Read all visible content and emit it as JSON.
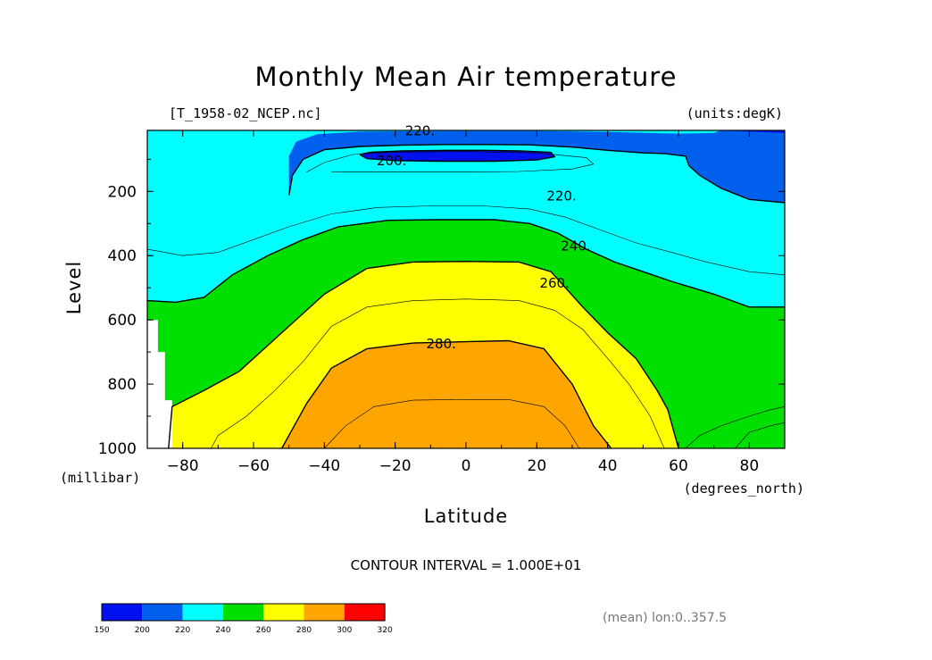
{
  "chart_data": {
    "type": "contour",
    "title": "Monthly Mean Air temperature",
    "subtitle_left": "[T_1958-02_NCEP.nc]",
    "subtitle_right": "(units:degK)",
    "xlabel": "Latitude",
    "xunits": "(degrees_north)",
    "ylabel": "Level",
    "yunits": "(millibar)",
    "xlim": [
      -90,
      90
    ],
    "ylim": [
      1000,
      10
    ],
    "xticks": [
      -80,
      -60,
      -40,
      -20,
      0,
      20,
      40,
      60,
      80
    ],
    "xtick_labels": [
      "-80",
      "-60",
      "-40",
      "-20",
      "0",
      "20",
      "40",
      "60",
      "80"
    ],
    "yticks": [
      200,
      400,
      600,
      800,
      1000
    ],
    "ytick_labels": [
      "200",
      "400",
      "600",
      "800",
      "1000"
    ],
    "contour_labels": [
      {
        "text": "220.",
        "lat": -13,
        "lev": 12
      },
      {
        "text": "200.",
        "lat": -21,
        "lev": 105
      },
      {
        "text": "220.",
        "lat": 27,
        "lev": 215
      },
      {
        "text": "240.",
        "lat": 31,
        "lev": 370
      },
      {
        "text": "260.",
        "lat": 25,
        "lev": 485
      },
      {
        "text": "280.",
        "lat": -7,
        "lev": 675
      }
    ],
    "colorbar": {
      "boundaries": [
        "150",
        "200",
        "220",
        "240",
        "260",
        "280",
        "300",
        "320"
      ],
      "colors": [
        "#0010ee",
        "#0060ee",
        "#00ffff",
        "#00e000",
        "#ffff00",
        "#ffa500",
        "#ff0000"
      ]
    },
    "levels": [
      {
        "value": 200,
        "color": "#0010ee",
        "poly": [
          [
            -30,
            85
          ],
          [
            -28,
            80
          ],
          [
            -20,
            70
          ],
          [
            -10,
            67
          ],
          [
            0,
            67
          ],
          [
            10,
            68
          ],
          [
            20,
            70
          ],
          [
            25,
            75
          ],
          [
            25,
            95
          ],
          [
            20,
            110
          ],
          [
            10,
            115
          ],
          [
            0,
            117
          ],
          [
            -10,
            118
          ],
          [
            -20,
            118
          ],
          [
            -30,
            112
          ],
          [
            -32,
            100
          ]
        ]
      },
      {
        "value": 220,
        "color": "#0060ee",
        "poly": [
          [
            -50,
            220
          ],
          [
            -50,
            150
          ],
          [
            -48,
            90
          ],
          [
            -40,
            55
          ],
          [
            -30,
            40
          ],
          [
            -10,
            32
          ],
          [
            0,
            30
          ],
          [
            10,
            30
          ],
          [
            30,
            35
          ],
          [
            40,
            42
          ],
          [
            50,
            60
          ],
          [
            55,
            75
          ],
          [
            60,
            80
          ],
          [
            62,
            90
          ],
          [
            64,
            100
          ],
          [
            68,
            110
          ],
          [
            70,
            140
          ],
          [
            75,
            175
          ],
          [
            82,
            205
          ],
          [
            88,
            230
          ],
          [
            90,
            235
          ],
          [
            90,
            12
          ],
          [
            72,
            12
          ],
          [
            72,
            40
          ],
          [
            55,
            48
          ],
          [
            40,
            45
          ],
          [
            30,
            40
          ],
          [
            20,
            45
          ],
          [
            10,
            30
          ],
          [
            0,
            30
          ],
          [
            -10,
            30
          ],
          [
            -20,
            30
          ],
          [
            -30,
            35
          ],
          [
            -40,
            55
          ],
          [
            -48,
            90
          ],
          [
            -50,
            150
          ]
        ]
      },
      {
        "value": 220,
        "color": "#0060ee",
        "poly": [
          [
            -50,
            212
          ],
          [
            -49,
            150
          ],
          [
            -47,
            95
          ],
          [
            -40,
            68
          ],
          [
            -30,
            55
          ],
          [
            -20,
            52
          ],
          [
            -10,
            52
          ],
          [
            0,
            50
          ],
          [
            10,
            50
          ],
          [
            25,
            55
          ],
          [
            40,
            68
          ],
          [
            50,
            80
          ],
          [
            62,
            85
          ],
          [
            64,
            110
          ],
          [
            67,
            140
          ],
          [
            75,
            175
          ],
          [
            82,
            205
          ],
          [
            90,
            235
          ],
          [
            90,
            10
          ],
          [
            72,
            10
          ],
          [
            72,
            40
          ],
          [
            55,
            48
          ],
          [
            40,
            40
          ],
          [
            25,
            25
          ],
          [
            10,
            15
          ],
          [
            -10,
            12
          ],
          [
            -30,
            15
          ],
          [
            -40,
            25
          ],
          [
            -48,
            50
          ]
        ]
      }
    ],
    "footer_note": "CONTOUR INTERVAL = 1.000E+01",
    "domain_note": "(mean) lon:0..357.5"
  }
}
